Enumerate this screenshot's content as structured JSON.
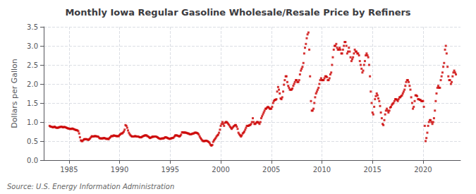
{
  "chart_data": {
    "type": "scatter",
    "title": "Monthly Iowa Regular Gasoline Wholesale/Resale Price by Refiners",
    "ylabel": "Dollars per Gallon",
    "annotations": [
      "Source: U.S. Energy Information Administration"
    ],
    "color": "#CC0000",
    "marker": "square",
    "grid": true,
    "xlim": [
      1982.5,
      2023.7
    ],
    "ylim": [
      0.0,
      3.5
    ],
    "xticks": [
      1985,
      1990,
      1995,
      2000,
      2005,
      2010,
      2015,
      2020
    ],
    "yticks": [
      {
        "value": 0.0,
        "label": "0.0"
      },
      0.5,
      {
        "value": 1.0,
        "label": "1.0"
      },
      1.5,
      {
        "value": 2.0,
        "label": "2.0"
      },
      2.5,
      {
        "value": 3.0,
        "label": "3.0"
      },
      3.5
    ],
    "x": [
      1983.08,
      1983.17,
      1983.25,
      1983.33,
      1983.42,
      1983.5,
      1983.58,
      1983.67,
      1983.75,
      1983.83,
      1983.92,
      1984.0,
      1984.08,
      1984.17,
      1984.25,
      1984.33,
      1984.42,
      1984.5,
      1984.58,
      1984.67,
      1984.75,
      1984.83,
      1984.92,
      1985.0,
      1985.08,
      1985.17,
      1985.25,
      1985.33,
      1985.42,
      1985.5,
      1985.58,
      1985.67,
      1985.75,
      1985.83,
      1985.92,
      1986.0,
      1986.08,
      1986.17,
      1986.25,
      1986.33,
      1986.42,
      1986.5,
      1986.58,
      1986.67,
      1986.75,
      1986.83,
      1986.92,
      1987.0,
      1987.08,
      1987.17,
      1987.25,
      1987.33,
      1987.42,
      1987.5,
      1987.58,
      1987.67,
      1987.75,
      1987.83,
      1987.92,
      1988.0,
      1988.08,
      1988.17,
      1988.25,
      1988.33,
      1988.42,
      1988.5,
      1988.58,
      1988.67,
      1988.75,
      1988.83,
      1988.92,
      1989.0,
      1989.08,
      1989.17,
      1989.25,
      1989.33,
      1989.42,
      1989.5,
      1989.58,
      1989.67,
      1989.75,
      1989.83,
      1989.92,
      1990.0,
      1990.08,
      1990.17,
      1990.25,
      1990.33,
      1990.42,
      1990.5,
      1990.58,
      1990.67,
      1990.75,
      1990.83,
      1990.92,
      1991.0,
      1991.08,
      1991.17,
      1991.25,
      1991.33,
      1991.42,
      1991.5,
      1991.58,
      1991.67,
      1991.75,
      1991.83,
      1991.92,
      1992.0,
      1992.08,
      1992.17,
      1992.25,
      1992.33,
      1992.42,
      1992.5,
      1992.58,
      1992.67,
      1992.75,
      1992.83,
      1992.92,
      1993.0,
      1993.08,
      1993.17,
      1993.25,
      1993.33,
      1993.42,
      1993.5,
      1993.58,
      1993.67,
      1993.75,
      1993.83,
      1993.92,
      1994.0,
      1994.08,
      1994.17,
      1994.25,
      1994.33,
      1994.42,
      1994.5,
      1994.58,
      1994.67,
      1994.75,
      1994.83,
      1994.92,
      1995.0,
      1995.08,
      1995.17,
      1995.25,
      1995.33,
      1995.42,
      1995.5,
      1995.58,
      1995.67,
      1995.75,
      1995.83,
      1995.92,
      1996.0,
      1996.08,
      1996.17,
      1996.25,
      1996.33,
      1996.42,
      1996.5,
      1996.58,
      1996.67,
      1996.75,
      1996.83,
      1996.92,
      1997.0,
      1997.08,
      1997.17,
      1997.25,
      1997.33,
      1997.42,
      1997.5,
      1997.58,
      1997.67,
      1997.75,
      1997.83,
      1997.92,
      1998.0,
      1998.08,
      1998.17,
      1998.25,
      1998.33,
      1998.42,
      1998.5,
      1998.58,
      1998.67,
      1998.75,
      1998.83,
      1998.92,
      1999.0,
      1999.08,
      1999.17,
      1999.25,
      1999.33,
      1999.42,
      1999.5,
      1999.58,
      1999.67,
      1999.75,
      1999.83,
      1999.92,
      2000.0,
      2000.08,
      2000.17,
      2000.25,
      2000.33,
      2000.42,
      2000.5,
      2000.58,
      2000.67,
      2000.75,
      2000.83,
      2000.92,
      2001.0,
      2001.08,
      2001.17,
      2001.25,
      2001.33,
      2001.42,
      2001.5,
      2001.58,
      2001.67,
      2001.75,
      2001.83,
      2001.92,
      2002.0,
      2002.08,
      2002.17,
      2002.25,
      2002.33,
      2002.42,
      2002.5,
      2002.58,
      2002.67,
      2002.75,
      2002.83,
      2002.92,
      2003.0,
      2003.08,
      2003.17,
      2003.25,
      2003.33,
      2003.42,
      2003.5,
      2003.58,
      2003.67,
      2003.75,
      2003.83,
      2003.92,
      2004.0,
      2004.08,
      2004.17,
      2004.25,
      2004.33,
      2004.42,
      2004.5,
      2004.58,
      2004.67,
      2004.75,
      2004.83,
      2004.92,
      2005.0,
      2005.08,
      2005.17,
      2005.25,
      2005.33,
      2005.42,
      2005.5,
      2005.58,
      2005.67,
      2005.75,
      2005.83,
      2005.92,
      2006.0,
      2006.08,
      2006.17,
      2006.25,
      2006.33,
      2006.42,
      2006.5,
      2006.58,
      2006.67,
      2006.75,
      2006.83,
      2006.92,
      2007.0,
      2007.08,
      2007.17,
      2007.25,
      2007.33,
      2007.42,
      2007.5,
      2007.58,
      2007.67,
      2007.75,
      2007.83,
      2007.92,
      2008.0,
      2008.08,
      2008.17,
      2008.25,
      2008.33,
      2008.42,
      2008.5,
      2008.58,
      2008.67,
      2008.75,
      2008.83,
      2008.92,
      2009.0,
      2009.08,
      2009.17,
      2009.25,
      2009.33,
      2009.42,
      2009.5,
      2009.58,
      2009.67,
      2009.75,
      2009.83,
      2009.92,
      2010.0,
      2010.08,
      2010.17,
      2010.25,
      2010.33,
      2010.42,
      2010.5,
      2010.58,
      2010.67,
      2010.75,
      2010.83,
      2010.92,
      2011.0,
      2011.08,
      2011.17,
      2011.25,
      2011.33,
      2011.42,
      2011.5,
      2011.58,
      2011.67,
      2011.75,
      2011.83,
      2011.92,
      2012.0,
      2012.08,
      2012.17,
      2012.25,
      2012.33,
      2012.42,
      2012.5,
      2012.58,
      2012.67,
      2012.75,
      2012.83,
      2012.92,
      2013.0,
      2013.08,
      2013.17,
      2013.25,
      2013.33,
      2013.42,
      2013.5,
      2013.58,
      2013.67,
      2013.75,
      2013.83,
      2013.92,
      2014.0,
      2014.08,
      2014.17,
      2014.25,
      2014.33,
      2014.42,
      2014.5,
      2014.58,
      2014.67,
      2014.75,
      2014.83,
      2014.92,
      2015.0,
      2015.08,
      2015.17,
      2015.25,
      2015.33,
      2015.42,
      2015.5,
      2015.58,
      2015.67,
      2015.75,
      2015.83,
      2015.92,
      2016.0,
      2016.08,
      2016.17,
      2016.25,
      2016.33,
      2016.42,
      2016.5,
      2016.58,
      2016.67,
      2016.75,
      2016.83,
      2016.92,
      2017.0,
      2017.08,
      2017.17,
      2017.25,
      2017.33,
      2017.42,
      2017.5,
      2017.58,
      2017.67,
      2017.75,
      2017.83,
      2017.92,
      2018.0,
      2018.08,
      2018.17,
      2018.25,
      2018.33,
      2018.42,
      2018.5,
      2018.58,
      2018.67,
      2018.75,
      2018.83,
      2018.92,
      2019.0,
      2019.08,
      2019.17,
      2019.25,
      2019.33,
      2019.42,
      2019.5,
      2019.58,
      2019.67,
      2019.75,
      2019.83,
      2019.92,
      2020.0,
      2020.08,
      2020.17,
      2020.25,
      2020.33,
      2020.42,
      2020.5,
      2020.58,
      2020.67,
      2020.75,
      2020.83,
      2020.92,
      2021.0,
      2021.08,
      2021.17,
      2021.25,
      2021.33,
      2021.42,
      2021.5,
      2021.58,
      2021.67,
      2021.75,
      2021.83,
      2021.92,
      2022.0,
      2022.08,
      2022.17,
      2022.25,
      2022.33,
      2022.42,
      2022.5,
      2022.58,
      2022.67,
      2022.75,
      2022.83,
      2022.92,
      2023.0,
      2023.08,
      2023.17,
      2023.25
    ],
    "values": [
      0.9,
      0.88,
      0.88,
      0.87,
      0.86,
      0.87,
      0.88,
      0.86,
      0.85,
      0.85,
      0.85,
      0.86,
      0.87,
      0.87,
      0.88,
      0.87,
      0.86,
      0.87,
      0.87,
      0.86,
      0.85,
      0.84,
      0.83,
      0.83,
      0.82,
      0.82,
      0.82,
      0.83,
      0.82,
      0.81,
      0.8,
      0.79,
      0.79,
      0.78,
      0.76,
      0.7,
      0.6,
      0.52,
      0.5,
      0.5,
      0.53,
      0.55,
      0.55,
      0.55,
      0.55,
      0.54,
      0.53,
      0.55,
      0.57,
      0.6,
      0.63,
      0.62,
      0.62,
      0.63,
      0.63,
      0.63,
      0.62,
      0.62,
      0.61,
      0.58,
      0.57,
      0.57,
      0.57,
      0.57,
      0.58,
      0.58,
      0.57,
      0.56,
      0.56,
      0.56,
      0.55,
      0.58,
      0.6,
      0.63,
      0.63,
      0.63,
      0.65,
      0.64,
      0.64,
      0.63,
      0.63,
      0.63,
      0.63,
      0.66,
      0.68,
      0.7,
      0.7,
      0.72,
      0.75,
      0.8,
      0.92,
      0.9,
      0.85,
      0.78,
      0.72,
      0.68,
      0.65,
      0.63,
      0.62,
      0.62,
      0.62,
      0.63,
      0.63,
      0.62,
      0.62,
      0.62,
      0.61,
      0.6,
      0.6,
      0.6,
      0.62,
      0.63,
      0.64,
      0.65,
      0.65,
      0.65,
      0.63,
      0.62,
      0.6,
      0.58,
      0.59,
      0.6,
      0.62,
      0.61,
      0.62,
      0.62,
      0.62,
      0.61,
      0.6,
      0.58,
      0.57,
      0.56,
      0.56,
      0.57,
      0.57,
      0.57,
      0.58,
      0.6,
      0.6,
      0.59,
      0.58,
      0.57,
      0.56,
      0.56,
      0.57,
      0.58,
      0.58,
      0.59,
      0.62,
      0.65,
      0.65,
      0.65,
      0.64,
      0.63,
      0.62,
      0.64,
      0.67,
      0.73,
      0.73,
      0.72,
      0.73,
      0.72,
      0.72,
      0.71,
      0.7,
      0.7,
      0.68,
      0.68,
      0.68,
      0.69,
      0.7,
      0.7,
      0.72,
      0.72,
      0.72,
      0.71,
      0.7,
      0.67,
      0.62,
      0.58,
      0.55,
      0.52,
      0.5,
      0.5,
      0.5,
      0.51,
      0.51,
      0.5,
      0.49,
      0.47,
      0.44,
      0.4,
      0.38,
      0.4,
      0.48,
      0.52,
      0.55,
      0.58,
      0.62,
      0.65,
      0.67,
      0.72,
      0.8,
      0.9,
      0.95,
      1.0,
      0.95,
      0.9,
      0.98,
      1.0,
      1.0,
      0.98,
      0.95,
      0.92,
      0.88,
      0.85,
      0.82,
      0.85,
      0.88,
      0.9,
      0.92,
      0.92,
      0.88,
      0.82,
      0.72,
      0.68,
      0.65,
      0.62,
      0.65,
      0.7,
      0.72,
      0.75,
      0.8,
      0.85,
      0.9,
      0.9,
      0.9,
      0.92,
      0.92,
      0.95,
      1.0,
      1.1,
      1.0,
      0.95,
      0.95,
      0.98,
      1.0,
      1.0,
      0.98,
      0.95,
      1.0,
      1.1,
      1.15,
      1.2,
      1.25,
      1.3,
      1.35,
      1.35,
      1.38,
      1.4,
      1.38,
      1.35,
      1.35,
      1.35,
      1.4,
      1.5,
      1.55,
      1.58,
      1.58,
      1.6,
      1.8,
      1.92,
      1.85,
      1.75,
      1.62,
      1.6,
      1.65,
      1.8,
      1.98,
      2.1,
      2.2,
      2.2,
      2.05,
      1.95,
      1.9,
      1.85,
      1.85,
      1.85,
      1.88,
      1.95,
      2.0,
      2.05,
      2.1,
      2.1,
      2.05,
      2.05,
      2.1,
      2.25,
      2.35,
      2.4,
      2.45,
      2.55,
      2.8,
      2.95,
      3.05,
      3.2,
      3.3,
      3.35,
      2.9,
      2.2,
      1.55,
      1.3,
      1.3,
      1.35,
      1.5,
      1.65,
      1.75,
      1.8,
      1.85,
      1.9,
      2.0,
      2.1,
      2.15,
      2.1,
      2.1,
      2.1,
      2.15,
      2.2,
      2.2,
      2.18,
      2.1,
      2.1,
      2.15,
      2.25,
      2.3,
      2.5,
      2.7,
      2.9,
      3.0,
      3.0,
      3.05,
      2.95,
      2.9,
      2.9,
      2.95,
      2.9,
      2.8,
      2.8,
      2.9,
      3.0,
      3.1,
      3.1,
      3.0,
      2.8,
      2.85,
      2.95,
      2.85,
      2.7,
      2.6,
      2.65,
      2.7,
      2.8,
      2.9,
      2.85,
      2.85,
      2.8,
      2.8,
      2.75,
      2.6,
      2.5,
      2.4,
      2.3,
      2.35,
      2.5,
      2.6,
      2.75,
      2.8,
      2.75,
      2.7,
      2.5,
      2.2,
      1.8,
      1.5,
      1.25,
      1.2,
      1.4,
      1.6,
      1.68,
      1.75,
      1.7,
      1.62,
      1.55,
      1.42,
      1.25,
      1.1,
      0.95,
      0.92,
      1.05,
      1.2,
      1.3,
      1.35,
      1.3,
      1.25,
      1.3,
      1.38,
      1.4,
      1.45,
      1.48,
      1.5,
      1.55,
      1.6,
      1.6,
      1.58,
      1.55,
      1.6,
      1.65,
      1.65,
      1.68,
      1.7,
      1.75,
      1.8,
      1.85,
      1.95,
      2.05,
      2.1,
      2.1,
      2.05,
      1.95,
      1.85,
      1.65,
      1.5,
      1.35,
      1.4,
      1.55,
      1.7,
      1.7,
      1.68,
      1.6,
      1.6,
      1.58,
      1.58,
      1.55,
      1.55,
      1.55,
      1.4,
      0.9,
      0.5,
      0.58,
      0.72,
      0.9,
      1.0,
      1.05,
      1.05,
      1.0,
      0.95,
      1.0,
      1.1,
      1.3,
      1.55,
      1.75,
      1.9,
      1.95,
      1.9,
      1.9,
      2.1,
      2.2,
      2.3,
      2.45,
      2.55,
      2.9,
      3.0,
      2.8,
      2.45,
      2.2,
      2.1,
      2.1,
      2.0,
      2.05,
      2.2,
      2.3,
      2.35,
      2.3,
      2.25
    ]
  }
}
